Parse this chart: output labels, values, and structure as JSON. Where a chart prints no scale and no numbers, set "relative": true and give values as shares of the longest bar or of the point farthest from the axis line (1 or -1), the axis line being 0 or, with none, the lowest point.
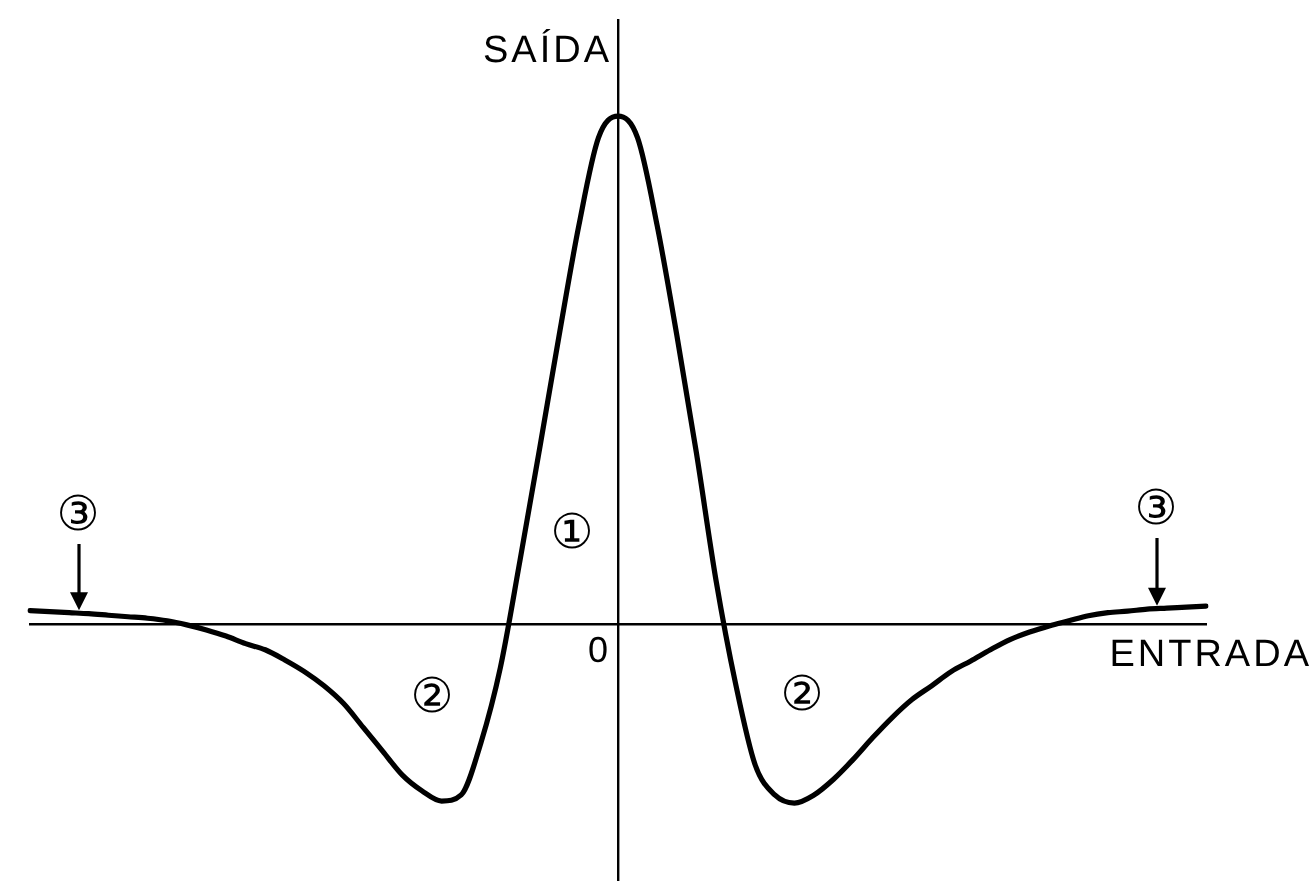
{
  "chart_data": {
    "type": "line",
    "xlabel": "ENTRADA",
    "ylabel": "SAÍDA",
    "relative": true,
    "categories": [
      null,
      null,
      null,
      null,
      null,
      null,
      null,
      null,
      null,
      null,
      null,
      null,
      null,
      null,
      null,
      null,
      null,
      null,
      null,
      null,
      null,
      null,
      null,
      null,
      null,
      null,
      null,
      null,
      null,
      null,
      null,
      null,
      null,
      null,
      null,
      null,
      null,
      null,
      null,
      null,
      null,
      null,
      null,
      null,
      null,
      null,
      null,
      null,
      null,
      null,
      null,
      null,
      null,
      null,
      null,
      null,
      null,
      null,
      null,
      null,
      null
    ],
    "series": [
      {
        "color": "#000000",
        "values": [
          0.026,
          0.024,
          0.022,
          0.02,
          0.017,
          0.014,
          0.011,
          0.006,
          -0.002,
          -0.012,
          -0.024,
          -0.039,
          -0.051,
          -0.071,
          -0.094,
          -0.122,
          -0.157,
          -0.204,
          -0.251,
          -0.298,
          -0.329,
          -0.349,
          -0.337,
          -0.235,
          -0.086,
          0.125,
          0.345,
          0.569,
          0.784,
          0.957,
          1,
          0.957,
          0.784,
          0.569,
          0.337,
          0.086,
          -0.118,
          -0.278,
          -0.337,
          -0.353,
          -0.337,
          -0.306,
          -0.267,
          -0.224,
          -0.184,
          -0.149,
          -0.122,
          -0.094,
          -0.073,
          -0.051,
          -0.031,
          -0.016,
          -0.004,
          0.006,
          0.016,
          0.022,
          0.025,
          0.029,
          0.031,
          0.033,
          0.035
        ]
      }
    ],
    "annotations": [
      "①",
      "②",
      "②",
      "③",
      "③",
      "0"
    ]
  }
}
